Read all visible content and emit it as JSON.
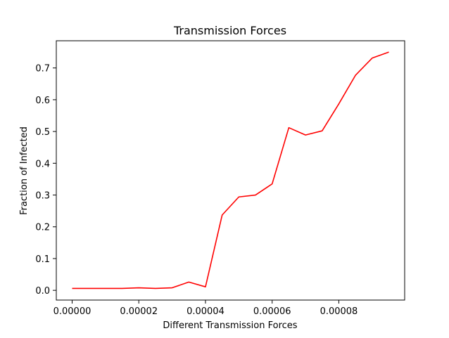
{
  "chart_data": {
    "type": "line",
    "title": "Transmission Forces",
    "xlabel": "Different Transmission Forces",
    "ylabel": "Fraction of Infected",
    "xlim": [
      -4.75e-06,
      9.975e-05
    ],
    "ylim": [
      -0.0306,
      0.7856
    ],
    "grid": false,
    "x_ticks": [
      0.0,
      2e-05,
      4e-05,
      6e-05,
      8e-05
    ],
    "x_tick_labels": [
      "0.00000",
      "0.00002",
      "0.00004",
      "0.00006",
      "0.00008"
    ],
    "y_ticks": [
      0.0,
      0.1,
      0.2,
      0.3,
      0.4,
      0.5,
      0.6,
      0.7
    ],
    "y_tick_labels": [
      "0.0",
      "0.1",
      "0.2",
      "0.3",
      "0.4",
      "0.5",
      "0.6",
      "0.7"
    ],
    "series": [
      {
        "color": "#ff0000",
        "x": [
          0.0,
          5e-06,
          1e-05,
          1.5e-05,
          2e-05,
          2.5e-05,
          3e-05,
          3.5e-05,
          4e-05,
          4.5e-05,
          5e-05,
          5.5e-05,
          6e-05,
          6.5e-05,
          7e-05,
          7.5e-05,
          8e-05,
          8.5e-05,
          9e-05,
          9.5e-05
        ],
        "y": [
          0.006,
          0.006,
          0.006,
          0.006,
          0.008,
          0.006,
          0.008,
          0.026,
          0.011,
          0.237,
          0.294,
          0.3,
          0.335,
          0.512,
          0.489,
          0.502,
          0.587,
          0.677,
          0.731,
          0.75
        ]
      }
    ]
  }
}
